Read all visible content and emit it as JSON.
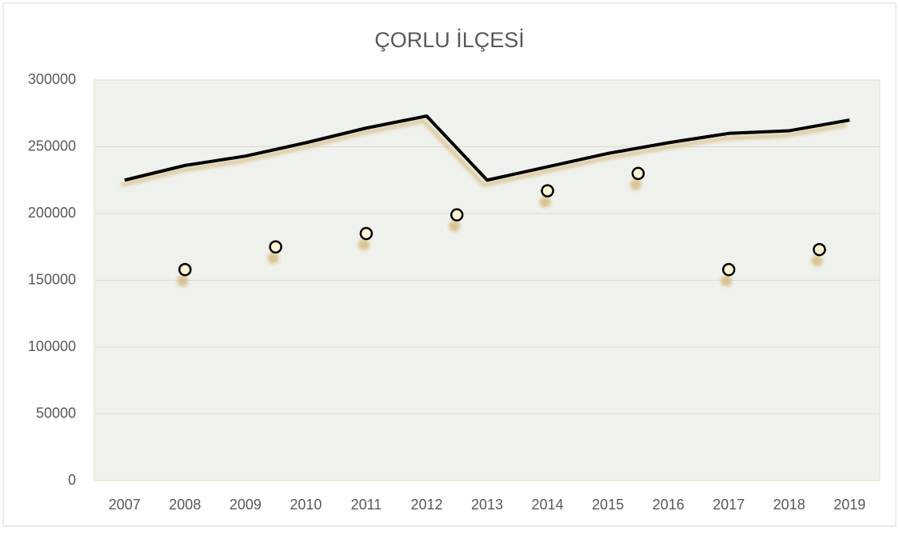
{
  "chart_data": {
    "type": "line",
    "title": "ÇORLU İLÇESİ",
    "categories": [
      "2007",
      "2008",
      "2009",
      "2010",
      "2011",
      "2012",
      "2013",
      "2014",
      "2015",
      "2016",
      "2017",
      "2018",
      "2019"
    ],
    "series": [
      {
        "type": "line",
        "color": "#000000",
        "values": [
          225000,
          236000,
          243000,
          253000,
          264000,
          273000,
          225000,
          235000,
          245000,
          253000,
          260000,
          262000,
          270000
        ]
      },
      {
        "type": "scatter",
        "color": "#fdf3cf",
        "x": [
          2008,
          2009.5,
          2011,
          2012.5,
          2014,
          2015.5,
          2017,
          2018.5
        ],
        "values": [
          158000,
          175000,
          185000,
          199000,
          217000,
          230000,
          158000,
          173000
        ]
      }
    ],
    "shadow_color": "#d9c48e",
    "ylim": [
      0,
      300000
    ],
    "yticks": [
      0,
      50000,
      100000,
      150000,
      200000,
      250000,
      300000
    ],
    "grid": true
  }
}
